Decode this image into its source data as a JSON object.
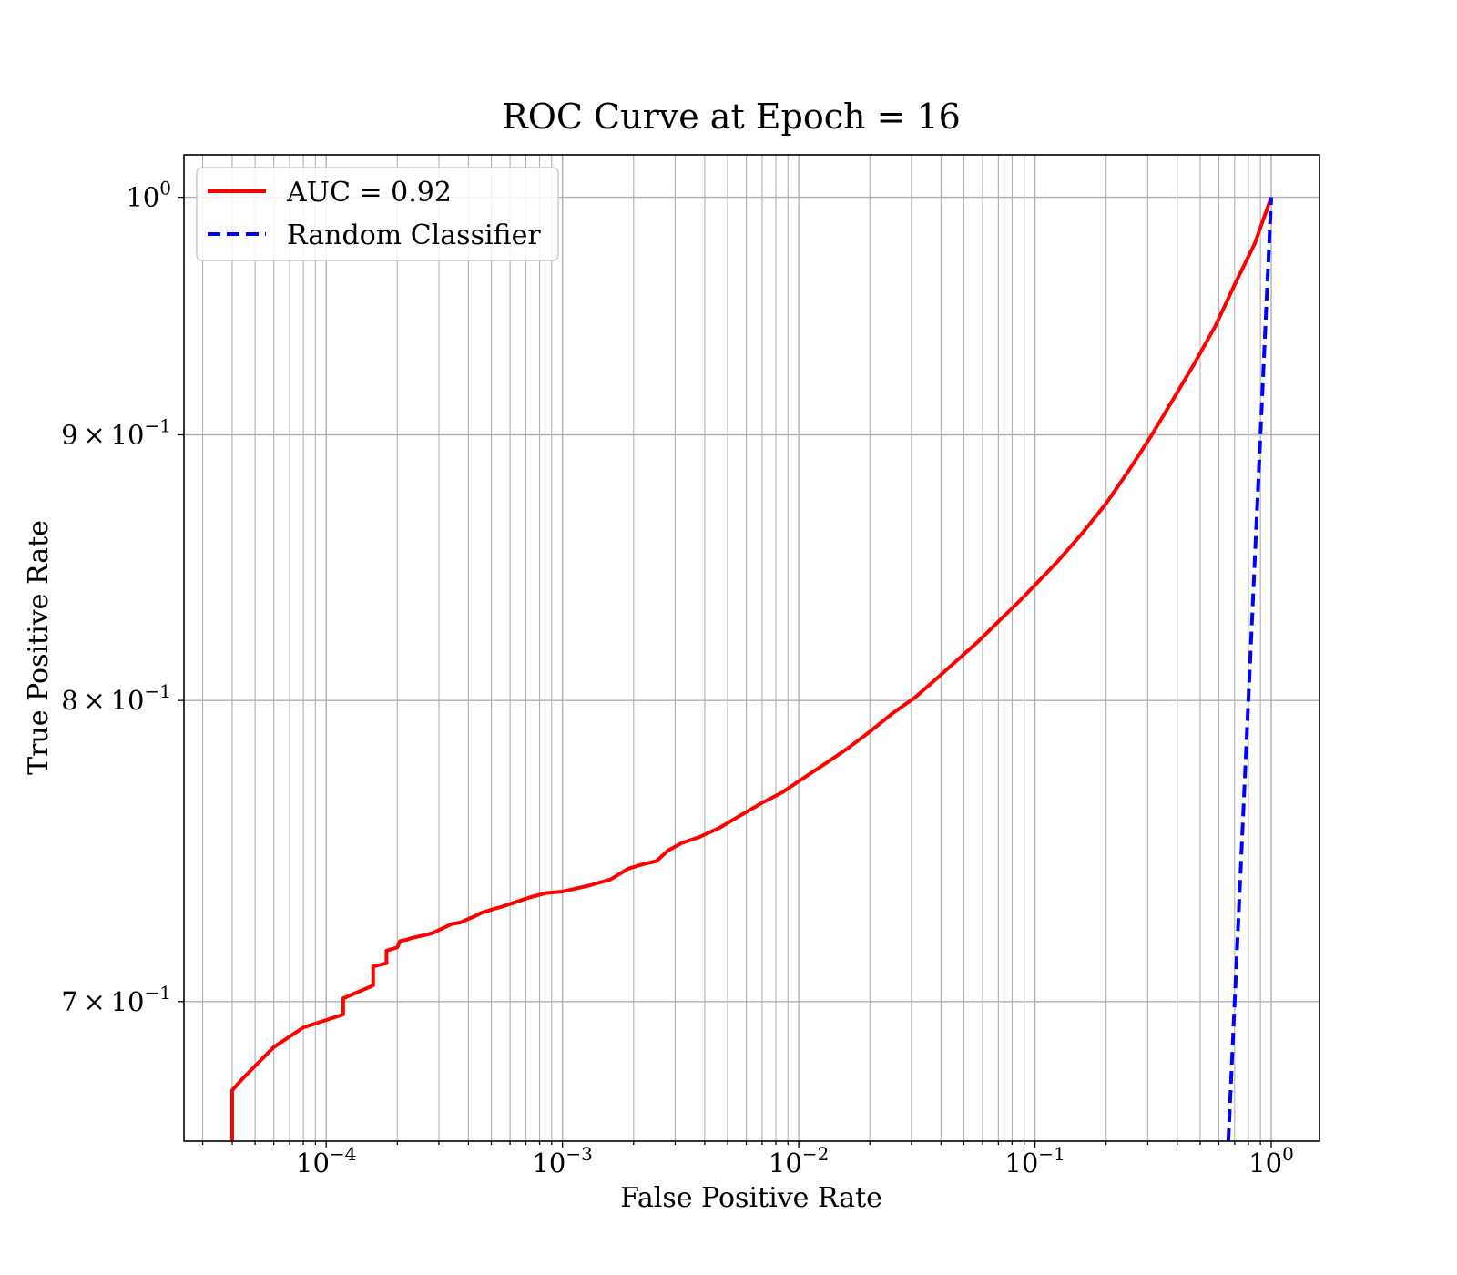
{
  "chart_data": {
    "type": "line",
    "title": "ROC Curve at Epoch = 16",
    "xlabel": "False Positive Rate",
    "ylabel": "True Positive Rate",
    "xscale": "log",
    "yscale": "log",
    "xlim": [
      2.5e-05,
      1.6
    ],
    "ylim": [
      0.658,
      1.019
    ],
    "grid": "on (major and minor, x)",
    "legend_position": "upper-left",
    "x_tick_labels": [
      {
        "value": 0.0001,
        "base": "10",
        "exp": "−4"
      },
      {
        "value": 0.001,
        "base": "10",
        "exp": "−3"
      },
      {
        "value": 0.01,
        "base": "10",
        "exp": "−2"
      },
      {
        "value": 0.1,
        "base": "10",
        "exp": "−1"
      },
      {
        "value": 1,
        "base": "10",
        "exp": "0"
      }
    ],
    "y_tick_labels": [
      {
        "value": 1.0,
        "mant": "",
        "base": "10",
        "exp": "0"
      },
      {
        "value": 0.9,
        "mant": "9",
        "base": "10",
        "exp": "−1"
      },
      {
        "value": 0.8,
        "mant": "8",
        "base": "10",
        "exp": "−1"
      },
      {
        "value": 0.7,
        "mant": "7",
        "base": "10",
        "exp": "−1"
      }
    ],
    "series": [
      {
        "name": "AUC = 0.92",
        "color": "#ff0000",
        "style": "solid",
        "x": [
          4e-05,
          4e-05,
          4.5e-05,
          6e-05,
          8e-05,
          0.000118,
          0.000118,
          0.000158,
          0.000158,
          0.00018,
          0.00018,
          0.0002,
          0.000205,
          0.00022,
          0.00023,
          0.00028,
          0.00034,
          0.00037,
          0.00044,
          0.00045,
          0.00052,
          0.00055,
          0.00063,
          0.00072,
          0.00085,
          0.001,
          0.0013,
          0.0016,
          0.0019,
          0.0022,
          0.0025,
          0.0028,
          0.0032,
          0.0038,
          0.0046,
          0.0056,
          0.007,
          0.0085,
          0.0105,
          0.013,
          0.016,
          0.02,
          0.025,
          0.031,
          0.038,
          0.047,
          0.058,
          0.071,
          0.087,
          0.1,
          0.125,
          0.16,
          0.2,
          0.25,
          0.31,
          0.38,
          0.47,
          0.58,
          0.7,
          0.85,
          1.0
        ],
        "y": [
          0.658,
          0.673,
          0.677,
          0.686,
          0.692,
          0.696,
          0.701,
          0.705,
          0.711,
          0.712,
          0.716,
          0.717,
          0.719,
          0.7195,
          0.72,
          0.7215,
          0.7245,
          0.725,
          0.7275,
          0.728,
          0.7295,
          0.73,
          0.7315,
          0.733,
          0.7345,
          0.735,
          0.737,
          0.739,
          0.7425,
          0.744,
          0.745,
          0.7485,
          0.751,
          0.753,
          0.756,
          0.76,
          0.7645,
          0.768,
          0.773,
          0.778,
          0.783,
          0.789,
          0.7955,
          0.801,
          0.8075,
          0.8145,
          0.8215,
          0.829,
          0.8365,
          0.842,
          0.851,
          0.862,
          0.873,
          0.886,
          0.8995,
          0.9135,
          0.9285,
          0.9445,
          0.962,
          0.9795,
          1.0
        ]
      },
      {
        "name": "Random Classifier",
        "color": "#0000ff",
        "style": "dashed",
        "x": [
          0.658,
          1.0
        ],
        "y": [
          0.658,
          1.0
        ]
      }
    ]
  }
}
